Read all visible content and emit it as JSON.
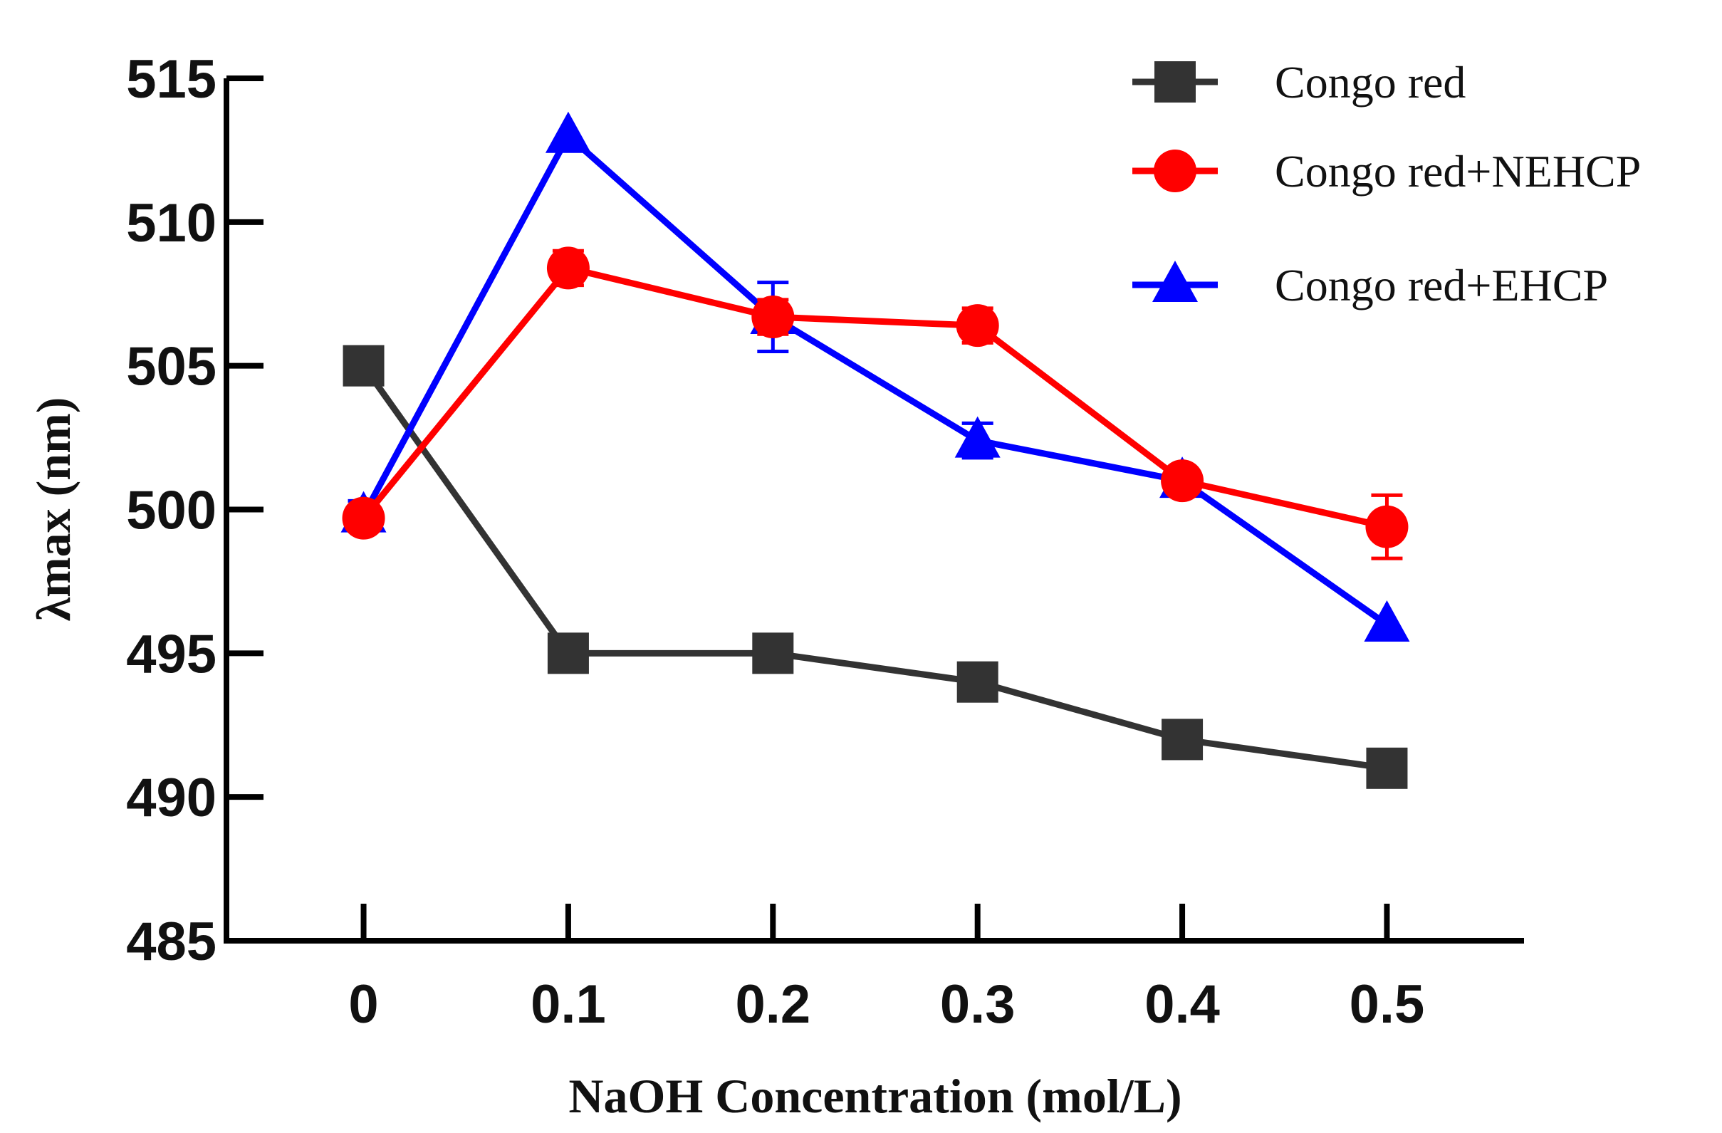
{
  "chart_data": {
    "type": "line",
    "title": "",
    "xlabel": "NaOH Concentration (mol/L)",
    "ylabel": "λmax (nm)",
    "x": [
      0,
      0.1,
      0.2,
      0.3,
      0.4,
      0.5
    ],
    "x_tick_labels": [
      "0",
      "0.1",
      "0.2",
      "0.3",
      "0.4",
      "0.5"
    ],
    "y_ticks": [
      485,
      490,
      495,
      500,
      505,
      510,
      515
    ],
    "y_tick_labels": [
      "485",
      "490",
      "495",
      "500",
      "505",
      "510",
      "515"
    ],
    "xlim": [
      -0.067,
      0.567
    ],
    "ylim": [
      485,
      515
    ],
    "grid": false,
    "legend_position": "top-right",
    "series": [
      {
        "name": "Congo red",
        "color": "#333333",
        "marker": "square",
        "values": [
          505.0,
          495.0,
          495.0,
          494.0,
          492.0,
          491.0
        ],
        "errors": [
          0,
          0,
          0,
          0,
          0,
          0
        ]
      },
      {
        "name": "Congo red+NEHCP",
        "color": "#ff0000",
        "marker": "circle",
        "values": [
          499.7,
          508.4,
          506.7,
          506.4,
          501.0,
          499.4
        ],
        "errors": [
          0.3,
          0.6,
          0.6,
          0.6,
          0.3,
          1.1
        ]
      },
      {
        "name": "Congo red+EHCP",
        "color": "#0000ff",
        "marker": "triangle",
        "values": [
          499.8,
          513.0,
          506.7,
          502.4,
          501.0,
          496.0
        ],
        "errors": [
          0.5,
          0,
          1.2,
          0.6,
          0.3,
          0
        ]
      }
    ]
  }
}
